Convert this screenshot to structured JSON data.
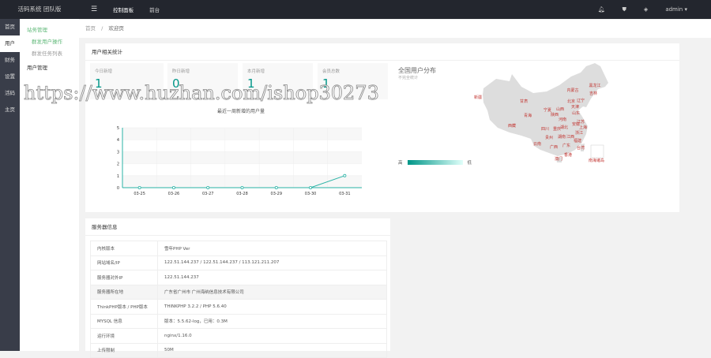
{
  "header": {
    "brand": "活码系统 团队版",
    "menu_icon": "menu-icon",
    "nav": [
      "控制面板",
      "前台"
    ],
    "icons": [
      "bell-icon",
      "shirt-icon",
      "tag-icon"
    ],
    "user": "admin"
  },
  "sidebar": {
    "items": [
      "首页",
      "用户",
      "财务",
      "设置",
      "活码",
      "主页"
    ],
    "active": "用户"
  },
  "subnav": {
    "group": "站务管理",
    "items": [
      "群发用户操作",
      "群发任务列表"
    ],
    "active": "群发用户操作",
    "group2": "用户管理"
  },
  "breadcrumb": [
    "首页",
    "/",
    "欢迎页"
  ],
  "stats_card": {
    "title": "用户相关统计",
    "stats": [
      {
        "label": "今日新增",
        "value": "1"
      },
      {
        "label": "昨日新增",
        "value": "0"
      },
      {
        "label": "本月新增",
        "value": "1"
      },
      {
        "label": "会员总数",
        "value": "1"
      }
    ]
  },
  "chart_data": {
    "type": "line",
    "title": "最近一周新增的用户量",
    "categories": [
      "03-25",
      "03-26",
      "03-27",
      "03-28",
      "03-29",
      "03-30",
      "03-31"
    ],
    "values": [
      0,
      0,
      0,
      0,
      0,
      0,
      1
    ],
    "ylim": [
      0,
      5
    ],
    "yticks": [
      "0",
      "1",
      "2",
      "3",
      "4",
      "5"
    ],
    "color": "#2ab3a6",
    "grid": true
  },
  "map": {
    "title": "全国用户分布",
    "subtitle": "不完全统计",
    "legend_high": "高",
    "legend_low": "低",
    "fill": "#dddddd",
    "label_color": "#c23531",
    "labels": [
      [
        "新疆",
        605,
        125
      ],
      [
        "甘肃",
        663,
        130
      ],
      [
        "内蒙古",
        725,
        116
      ],
      [
        "黑龙江",
        753,
        110
      ],
      [
        "吉林",
        751,
        120
      ],
      [
        "北京",
        723,
        130
      ],
      [
        "辽宁",
        735,
        129
      ],
      [
        "宁夏",
        693,
        141
      ],
      [
        "山西",
        709,
        140
      ],
      [
        "天津",
        728,
        137
      ],
      [
        "青海",
        668,
        148
      ],
      [
        "陕西",
        702,
        147
      ],
      [
        "山东",
        729,
        145
      ],
      [
        "河南",
        712,
        153
      ],
      [
        "西藏",
        648,
        161
      ],
      [
        "安徽",
        729,
        159
      ],
      [
        "江苏",
        735,
        156
      ],
      [
        "四川",
        690,
        165
      ],
      [
        "重庆",
        705,
        165
      ],
      [
        "湖北",
        714,
        163
      ],
      [
        "上海",
        738,
        163
      ],
      [
        "浙江",
        733,
        170
      ],
      [
        "贵州",
        695,
        176
      ],
      [
        "湖南",
        711,
        175
      ],
      [
        "江西",
        722,
        175
      ],
      [
        "福建",
        731,
        180
      ],
      [
        "云南",
        680,
        184
      ],
      [
        "广西",
        701,
        188
      ],
      [
        "广东",
        717,
        186
      ],
      [
        "台湾",
        735,
        189
      ],
      [
        "香港",
        719,
        198
      ],
      [
        "澳门",
        707,
        203
      ],
      [
        "南海诸岛",
        755,
        205
      ]
    ]
  },
  "server_card": {
    "title": "服务器信息",
    "rows": [
      [
        "内核版本",
        "雪年PHP Ver"
      ],
      [
        "网站域名/IP",
        "122.51.144.237 / 122.51.144.237 / 113.121.211.207"
      ],
      [
        "服务器对外IP",
        "122.51.144.237"
      ],
      [
        "服务器所在地",
        "广东省广州市 广州海纳信息技术有限公司"
      ],
      [
        "ThinkPHP版本 / PHP版本",
        "THINKPHP 3.2.2 / PHP 5.6.40"
      ],
      [
        "MYSQL 信息",
        "版本：5.5.62-log，已用：0.3M"
      ],
      [
        "运行环境",
        "nginx/1.16.0"
      ],
      [
        "上传限制",
        "50M"
      ]
    ]
  },
  "watermark": "https://www.huzhan.com/ishop30273"
}
